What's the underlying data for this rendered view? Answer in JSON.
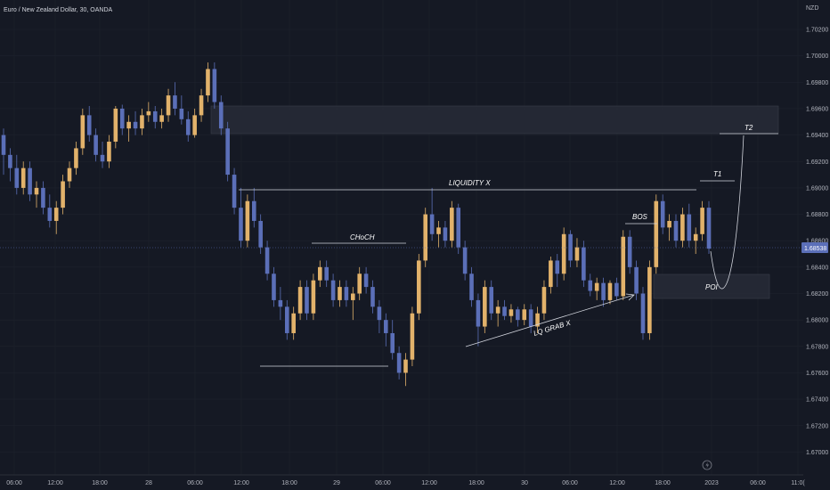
{
  "header": {
    "symbol_title": "Euro / New Zealand Dollar, 30, OANDA",
    "currency": "NZD"
  },
  "chart_data": {
    "type": "candlestick",
    "ylim": [
      1.669,
      1.7035
    ],
    "y_ticks": [
      "1.70200",
      "1.70000",
      "1.69800",
      "1.69600",
      "1.69400",
      "1.69200",
      "1.69000",
      "1.68800",
      "1.68600",
      "1.68400",
      "1.68200",
      "1.68000",
      "1.67800",
      "1.67600",
      "1.67400",
      "1.67200",
      "1.67000"
    ],
    "x_ticks": [
      "06:00",
      "12:00",
      "18:00",
      "28",
      "06:00",
      "12:00",
      "18:00",
      "29",
      "06:00",
      "12:00",
      "18:00",
      "30",
      "06:00",
      "12:00",
      "18:00",
      "2023",
      "06:00",
      "11:0("
    ],
    "last_price": "1.68538",
    "colors": {
      "up": "#e2b26b",
      "down": "#5b6fb8"
    },
    "candles": [
      [
        1.694,
        1.6945,
        1.691,
        1.6925
      ],
      [
        1.6925,
        1.693,
        1.6905,
        1.6915
      ],
      [
        1.6915,
        1.6925,
        1.6895,
        1.69
      ],
      [
        1.69,
        1.692,
        1.6895,
        1.6915
      ],
      [
        1.6915,
        1.692,
        1.689,
        1.6895
      ],
      [
        1.6895,
        1.6905,
        1.6885,
        1.69
      ],
      [
        1.69,
        1.6905,
        1.688,
        1.6885
      ],
      [
        1.6885,
        1.6895,
        1.687,
        1.6875
      ],
      [
        1.6875,
        1.689,
        1.6865,
        1.6885
      ],
      [
        1.6885,
        1.691,
        1.688,
        1.6905
      ],
      [
        1.6905,
        1.692,
        1.69,
        1.6915
      ],
      [
        1.6915,
        1.6935,
        1.691,
        1.693
      ],
      [
        1.693,
        1.696,
        1.6925,
        1.6955
      ],
      [
        1.6955,
        1.6962,
        1.6935,
        1.694
      ],
      [
        1.694,
        1.6945,
        1.692,
        1.6925
      ],
      [
        1.6925,
        1.6935,
        1.6915,
        1.692
      ],
      [
        1.692,
        1.694,
        1.6915,
        1.6935
      ],
      [
        1.6935,
        1.6962,
        1.693,
        1.696
      ],
      [
        1.696,
        1.6963,
        1.694,
        1.6945
      ],
      [
        1.6945,
        1.6955,
        1.6935,
        1.695
      ],
      [
        1.695,
        1.6958,
        1.694,
        1.6945
      ],
      [
        1.6945,
        1.696,
        1.694,
        1.6955
      ],
      [
        1.6955,
        1.6965,
        1.695,
        1.6958
      ],
      [
        1.6958,
        1.6962,
        1.6945,
        1.695
      ],
      [
        1.695,
        1.696,
        1.6945,
        1.6955
      ],
      [
        1.6955,
        1.6975,
        1.695,
        1.697
      ],
      [
        1.697,
        1.698,
        1.6955,
        1.696
      ],
      [
        1.696,
        1.697,
        1.6948,
        1.6952
      ],
      [
        1.6952,
        1.6958,
        1.6935,
        1.694
      ],
      [
        1.694,
        1.696,
        1.6938,
        1.6955
      ],
      [
        1.6955,
        1.6975,
        1.695,
        1.697
      ],
      [
        1.697,
        1.6995,
        1.6965,
        1.699
      ],
      [
        1.699,
        1.6995,
        1.696,
        1.6965
      ],
      [
        1.6965,
        1.697,
        1.694,
        1.6945
      ],
      [
        1.6945,
        1.695,
        1.6905,
        1.691
      ],
      [
        1.691,
        1.6915,
        1.688,
        1.6885
      ],
      [
        1.6885,
        1.69,
        1.6855,
        1.686
      ],
      [
        1.686,
        1.6895,
        1.6855,
        1.689
      ],
      [
        1.689,
        1.69,
        1.687,
        1.6875
      ],
      [
        1.6875,
        1.688,
        1.685,
        1.6855
      ],
      [
        1.6855,
        1.686,
        1.683,
        1.6835
      ],
      [
        1.6835,
        1.684,
        1.681,
        1.6815
      ],
      [
        1.6815,
        1.6825,
        1.68,
        1.681
      ],
      [
        1.681,
        1.6815,
        1.6785,
        1.679
      ],
      [
        1.679,
        1.681,
        1.6785,
        1.6805
      ],
      [
        1.6805,
        1.683,
        1.68,
        1.6825
      ],
      [
        1.6825,
        1.683,
        1.68,
        1.6805
      ],
      [
        1.6805,
        1.6835,
        1.68,
        1.683
      ],
      [
        1.683,
        1.6845,
        1.6825,
        1.684
      ],
      [
        1.684,
        1.6845,
        1.6825,
        1.683
      ],
      [
        1.683,
        1.6835,
        1.681,
        1.6815
      ],
      [
        1.6815,
        1.683,
        1.681,
        1.6825
      ],
      [
        1.6825,
        1.683,
        1.681,
        1.6815
      ],
      [
        1.6815,
        1.6825,
        1.68,
        1.682
      ],
      [
        1.682,
        1.684,
        1.6815,
        1.6835
      ],
      [
        1.6835,
        1.684,
        1.682,
        1.6825
      ],
      [
        1.6825,
        1.683,
        1.6805,
        1.681
      ],
      [
        1.681,
        1.6815,
        1.679,
        1.68
      ],
      [
        1.68,
        1.6805,
        1.678,
        1.679
      ],
      [
        1.679,
        1.68,
        1.677,
        1.6775
      ],
      [
        1.6775,
        1.678,
        1.6755,
        1.676
      ],
      [
        1.676,
        1.6775,
        1.675,
        1.677
      ],
      [
        1.677,
        1.681,
        1.6765,
        1.6805
      ],
      [
        1.6805,
        1.685,
        1.68,
        1.6845
      ],
      [
        1.6845,
        1.6885,
        1.684,
        1.688
      ],
      [
        1.688,
        1.69,
        1.686,
        1.6865
      ],
      [
        1.6865,
        1.6875,
        1.6855,
        1.687
      ],
      [
        1.687,
        1.6875,
        1.6855,
        1.686
      ],
      [
        1.686,
        1.689,
        1.6855,
        1.6885
      ],
      [
        1.6885,
        1.6888,
        1.685,
        1.6855
      ],
      [
        1.6855,
        1.686,
        1.683,
        1.6835
      ],
      [
        1.6835,
        1.684,
        1.681,
        1.6815
      ],
      [
        1.6815,
        1.682,
        1.678,
        1.6795
      ],
      [
        1.6795,
        1.683,
        1.679,
        1.6825
      ],
      [
        1.6825,
        1.683,
        1.68,
        1.6805
      ],
      [
        1.6805,
        1.6815,
        1.6795,
        1.681
      ],
      [
        1.681,
        1.6815,
        1.68,
        1.6803
      ],
      [
        1.6803,
        1.6812,
        1.6798,
        1.6808
      ],
      [
        1.6808,
        1.681,
        1.6795,
        1.68
      ],
      [
        1.68,
        1.6812,
        1.6796,
        1.6808
      ],
      [
        1.6808,
        1.6812,
        1.679,
        1.6795
      ],
      [
        1.6795,
        1.681,
        1.679,
        1.6805
      ],
      [
        1.6805,
        1.683,
        1.68,
        1.6825
      ],
      [
        1.6825,
        1.6848,
        1.682,
        1.6845
      ],
      [
        1.6845,
        1.685,
        1.6825,
        1.6835
      ],
      [
        1.6835,
        1.687,
        1.683,
        1.6865
      ],
      [
        1.6865,
        1.6868,
        1.684,
        1.6845
      ],
      [
        1.6845,
        1.6862,
        1.684,
        1.6855
      ],
      [
        1.6855,
        1.686,
        1.6825,
        1.683
      ],
      [
        1.683,
        1.6835,
        1.6818,
        1.6822
      ],
      [
        1.6822,
        1.6832,
        1.6815,
        1.6828
      ],
      [
        1.6828,
        1.6832,
        1.681,
        1.6815
      ],
      [
        1.6815,
        1.683,
        1.6812,
        1.6828
      ],
      [
        1.6828,
        1.6832,
        1.6815,
        1.6818
      ],
      [
        1.6818,
        1.6868,
        1.6815,
        1.6863
      ],
      [
        1.6863,
        1.6868,
        1.6835,
        1.684
      ],
      [
        1.684,
        1.6845,
        1.6815,
        1.682
      ],
      [
        1.682,
        1.6825,
        1.6785,
        1.679
      ],
      [
        1.679,
        1.6845,
        1.6785,
        1.684
      ],
      [
        1.684,
        1.6895,
        1.6835,
        1.689
      ],
      [
        1.689,
        1.6895,
        1.6865,
        1.687
      ],
      [
        1.687,
        1.688,
        1.686,
        1.6875
      ],
      [
        1.6875,
        1.688,
        1.6855,
        1.686
      ],
      [
        1.686,
        1.6885,
        1.6855,
        1.688
      ],
      [
        1.688,
        1.6888,
        1.6855,
        1.686
      ],
      [
        1.686,
        1.687,
        1.685,
        1.6865
      ],
      [
        1.6865,
        1.689,
        1.686,
        1.6885
      ],
      [
        1.6885,
        1.689,
        1.685,
        1.6854
      ]
    ]
  },
  "annotations": {
    "liquidity": "LIQUIDITY X",
    "choch": "CHoCH",
    "bos": "BOS",
    "lq_grab": "LQ GRAB X",
    "t1": "T1",
    "t2": "T2",
    "poi": "POI"
  }
}
